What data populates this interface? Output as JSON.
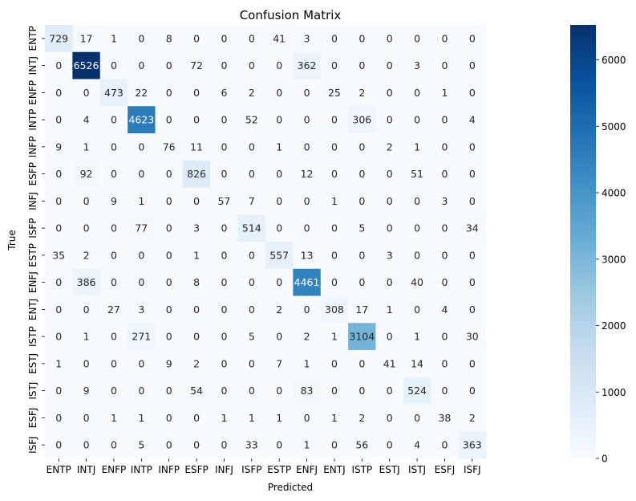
{
  "chart_data": {
    "type": "heatmap",
    "title": "Confusion Matrix",
    "xlabel": "Predicted",
    "ylabel": "True",
    "x_categories": [
      "ENTP",
      "INTJ",
      "ENFP",
      "INTP",
      "INFP",
      "ESFP",
      "INFJ",
      "ISFP",
      "ESTP",
      "ENFJ",
      "ENTJ",
      "ISTP",
      "ESTJ",
      "ISTJ",
      "ESFJ",
      "ISFJ"
    ],
    "y_categories": [
      "ENTP",
      "INTJ",
      "ENFP",
      "INTP",
      "INFP",
      "ESFP",
      "INFJ",
      "ISFP",
      "ESTP",
      "ENFJ",
      "ENTJ",
      "ISTP",
      "ESTJ",
      "ISTJ",
      "ESFJ",
      "ISFJ"
    ],
    "values": [
      [
        729,
        17,
        1,
        0,
        8,
        0,
        0,
        0,
        41,
        3,
        0,
        0,
        0,
        0,
        0,
        0
      ],
      [
        0,
        6526,
        0,
        0,
        0,
        72,
        0,
        0,
        0,
        362,
        0,
        0,
        0,
        3,
        0,
        0
      ],
      [
        0,
        0,
        473,
        22,
        0,
        0,
        6,
        2,
        0,
        0,
        25,
        2,
        0,
        0,
        1,
        0
      ],
      [
        0,
        4,
        0,
        4623,
        0,
        0,
        0,
        52,
        0,
        0,
        0,
        306,
        0,
        0,
        0,
        4
      ],
      [
        9,
        1,
        0,
        0,
        76,
        11,
        0,
        0,
        1,
        0,
        0,
        0,
        2,
        1,
        0,
        0
      ],
      [
        0,
        92,
        0,
        0,
        0,
        826,
        0,
        0,
        0,
        12,
        0,
        0,
        0,
        51,
        0,
        0
      ],
      [
        0,
        0,
        9,
        1,
        0,
        0,
        57,
        7,
        0,
        0,
        1,
        0,
        0,
        0,
        3,
        0
      ],
      [
        0,
        0,
        0,
        77,
        0,
        3,
        0,
        514,
        0,
        0,
        0,
        5,
        0,
        0,
        0,
        34
      ],
      [
        35,
        2,
        0,
        0,
        0,
        1,
        0,
        0,
        557,
        13,
        0,
        0,
        3,
        0,
        0,
        0
      ],
      [
        0,
        386,
        0,
        0,
        0,
        8,
        0,
        0,
        0,
        4461,
        0,
        0,
        0,
        40,
        0,
        0
      ],
      [
        0,
        0,
        27,
        3,
        0,
        0,
        0,
        0,
        2,
        0,
        308,
        17,
        1,
        0,
        4,
        0
      ],
      [
        0,
        1,
        0,
        271,
        0,
        0,
        0,
        5,
        0,
        2,
        1,
        3104,
        0,
        1,
        0,
        30
      ],
      [
        1,
        0,
        0,
        0,
        9,
        2,
        0,
        0,
        7,
        1,
        0,
        0,
        41,
        14,
        0,
        0
      ],
      [
        0,
        9,
        0,
        0,
        0,
        54,
        0,
        0,
        0,
        83,
        0,
        0,
        0,
        524,
        0,
        0
      ],
      [
        0,
        0,
        1,
        1,
        0,
        0,
        1,
        1,
        1,
        0,
        1,
        2,
        0,
        0,
        38,
        2
      ],
      [
        0,
        0,
        0,
        5,
        0,
        0,
        0,
        33,
        0,
        1,
        0,
        56,
        0,
        4,
        0,
        363
      ]
    ],
    "colorscale": "Blues",
    "vmin": 0,
    "vmax": 6526,
    "colorbar_ticks": [
      0,
      1000,
      2000,
      3000,
      4000,
      5000,
      6000
    ]
  }
}
